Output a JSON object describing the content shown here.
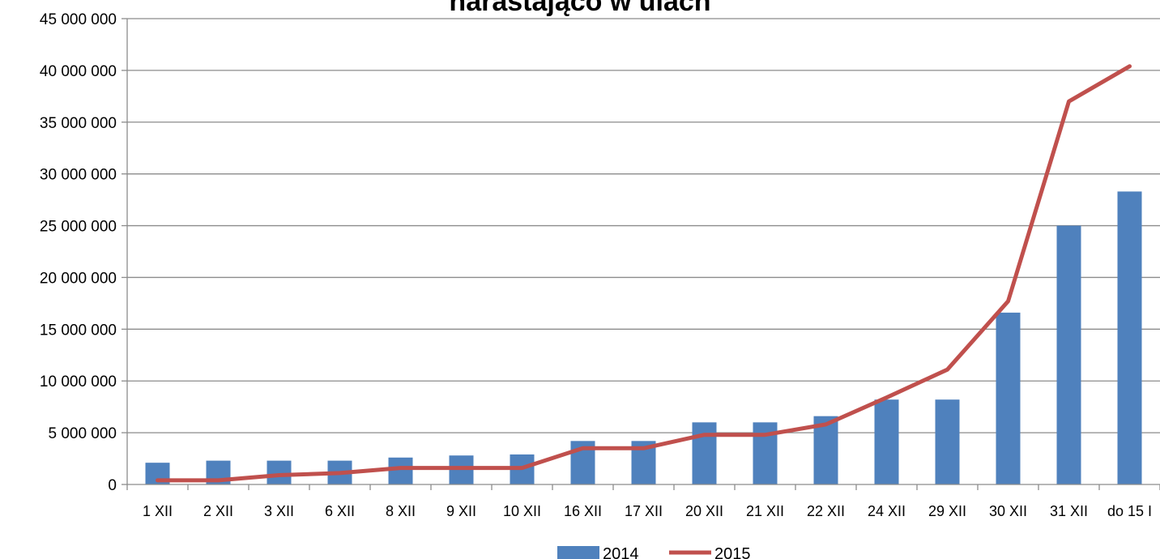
{
  "chart_data": {
    "type": "bar",
    "title": "narastająco w ulach",
    "categories": [
      "1 XII",
      "2 XII",
      "3 XII",
      "6 XII",
      "8 XII",
      "9 XII",
      "10 XII",
      "16 XII",
      "17 XII",
      "20 XII",
      "21 XII",
      "22 XII",
      "24 XII",
      "29 XII",
      "30 XII",
      "31 XII",
      "do 15 I"
    ],
    "series": [
      {
        "name": "2014",
        "type": "bar",
        "color": "#4f81bd",
        "values": [
          2100000,
          2300000,
          2300000,
          2300000,
          2600000,
          2800000,
          2900000,
          4200000,
          4200000,
          6000000,
          6000000,
          6600000,
          8200000,
          8200000,
          16600000,
          25000000,
          28300000
        ]
      },
      {
        "name": "2015",
        "type": "line",
        "color": "#c0504d",
        "values": [
          400000,
          400000,
          900000,
          1100000,
          1600000,
          1600000,
          1600000,
          3500000,
          3500000,
          4800000,
          4800000,
          5800000,
          8400000,
          11100000,
          17700000,
          37000000,
          40400000
        ]
      }
    ],
    "ylim": [
      0,
      45000000
    ],
    "yticks": [
      0,
      5000000,
      10000000,
      15000000,
      20000000,
      25000000,
      30000000,
      35000000,
      40000000,
      45000000
    ],
    "ytick_labels": [
      "0",
      "5 000 000",
      "10 000 000",
      "15 000 000",
      "20 000 000",
      "25 000 000",
      "30 000 000",
      "35 000 000",
      "40 000 000",
      "45 000 000"
    ],
    "grid": true,
    "legend": "bottom"
  }
}
